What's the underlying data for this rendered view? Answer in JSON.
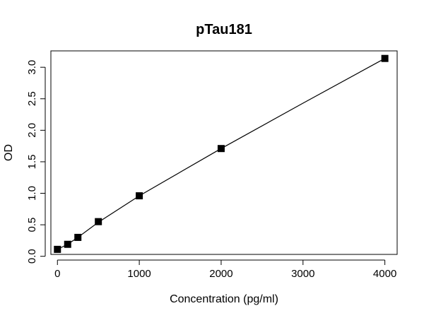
{
  "chart_data": {
    "type": "scatter",
    "title": "pTau181",
    "xlabel": "Concentration (pg/ml)",
    "ylabel": "OD",
    "xlim": [
      -80,
      4150
    ],
    "ylim": [
      0.03,
      3.26
    ],
    "x_ticks": [
      0,
      1000,
      2000,
      3000,
      4000
    ],
    "x_tick_labels": [
      "0",
      "1000",
      "2000",
      "3000",
      "4000"
    ],
    "y_ticks": [
      0.0,
      0.5,
      1.0,
      1.5,
      2.0,
      2.5,
      3.0
    ],
    "y_tick_labels": [
      "0.0",
      "0.5",
      "1.0",
      "1.5",
      "2.0",
      "2.5",
      "3.0"
    ],
    "grid": false,
    "legend": "none",
    "marker": "square",
    "marker_color": "#000000",
    "series": [
      {
        "x": [
          0,
          125,
          250,
          500,
          1000,
          2000,
          4000
        ],
        "y": [
          0.11,
          0.19,
          0.3,
          0.55,
          0.96,
          1.71,
          3.14
        ]
      }
    ],
    "fit_curve": {
      "type": "line",
      "x": [
        0,
        125,
        250,
        500,
        1000,
        2000,
        3000,
        4000
      ],
      "y": [
        0.11,
        0.19,
        0.3,
        0.54,
        0.96,
        1.71,
        2.43,
        3.14
      ]
    }
  }
}
